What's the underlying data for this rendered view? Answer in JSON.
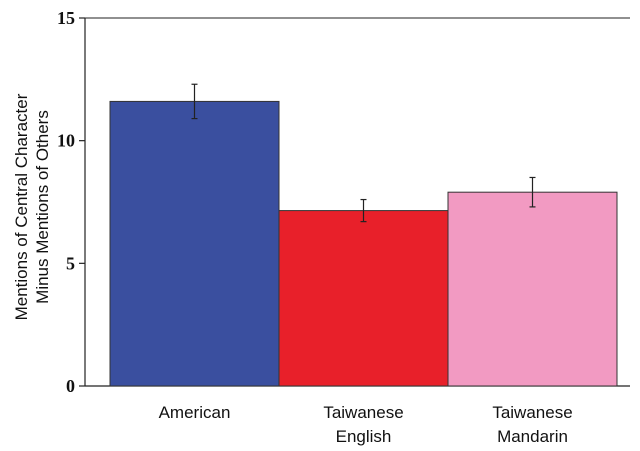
{
  "chart_data": {
    "type": "bar",
    "categories": [
      [
        "American"
      ],
      [
        "Taiwanese",
        "English"
      ],
      [
        "Taiwanese",
        "Mandarin"
      ]
    ],
    "values": [
      11.6,
      7.15,
      7.9
    ],
    "error_bars": [
      0.7,
      0.45,
      0.6
    ],
    "bar_colors": [
      "#3a4f9f",
      "#e8202a",
      "#f29ac2"
    ],
    "ylabel": [
      "Mentions of Central Character",
      "Minus Mentions of Others"
    ],
    "xlabel": "",
    "ylim": [
      0,
      15
    ],
    "yticks": [
      0,
      5,
      10,
      15
    ],
    "grid": false,
    "legend": "none"
  }
}
